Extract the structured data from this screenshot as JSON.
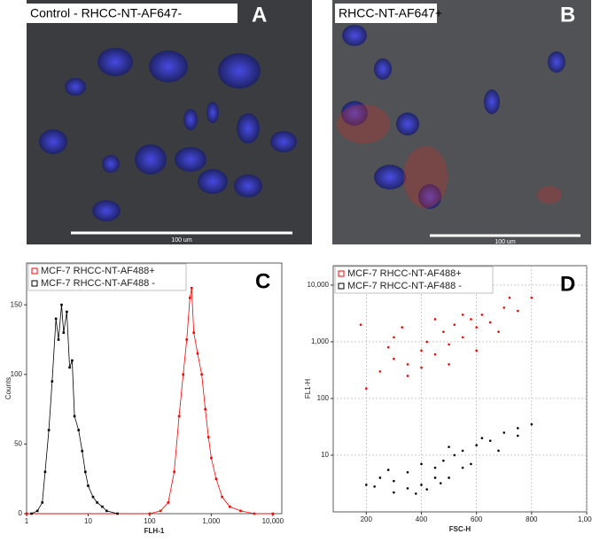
{
  "images": [
    {
      "letter": "A",
      "label": "Control - RHCC-NT-AF647-",
      "scale": "100 um"
    },
    {
      "letter": "B",
      "label": "RHCC-NT-AF647+",
      "scale": "100 um"
    }
  ],
  "chart_data": [
    {
      "type": "line",
      "panel": "C",
      "xlabel": "FLH-1",
      "ylabel": "Counts",
      "xlog": true,
      "xlim": [
        1,
        14000
      ],
      "ylim": [
        0,
        180
      ],
      "xticks": [
        1,
        10,
        100,
        {
          "value": 1000,
          "label": "1,000"
        },
        {
          "value": 10000,
          "label": "10,000"
        }
      ],
      "yticks": [
        0,
        50,
        100,
        150
      ],
      "series": [
        {
          "name": "MCF-7 RHCC-NT-AF488+",
          "color": "#ff0000",
          "x": [
            1,
            100,
            150,
            200,
            250,
            300,
            350,
            400,
            450,
            480,
            520,
            600,
            700,
            800,
            900,
            1000,
            1200,
            1500,
            2000,
            3000,
            5000,
            10000
          ],
          "values": [
            0,
            0,
            2,
            8,
            30,
            70,
            100,
            125,
            155,
            162,
            130,
            115,
            100,
            75,
            55,
            40,
            25,
            12,
            5,
            2,
            0,
            0
          ]
        },
        {
          "name": "MCF-7 RHCC-NT-AF488 -",
          "color": "#000000",
          "x": [
            1.2,
            1.5,
            1.8,
            2,
            2.3,
            2.6,
            3,
            3.3,
            3.7,
            4,
            4.5,
            5,
            5.5,
            6,
            7,
            8,
            9,
            10,
            12,
            14,
            17,
            20,
            30
          ],
          "values": [
            0,
            2,
            8,
            30,
            60,
            95,
            140,
            125,
            150,
            130,
            145,
            105,
            110,
            70,
            60,
            45,
            30,
            20,
            12,
            8,
            5,
            2,
            0
          ]
        }
      ]
    },
    {
      "type": "scatter",
      "panel": "D",
      "xlabel": "FSC-H",
      "ylabel": "FL1-H",
      "ylog": true,
      "grid": true,
      "xlim": [
        80,
        1000
      ],
      "ylim": [
        1,
        22000
      ],
      "xticks": [
        200,
        400,
        600,
        800,
        {
          "value": 1000,
          "label": "1,000"
        }
      ],
      "yticks": [
        10,
        100,
        {
          "value": 1000,
          "label": "1,000"
        },
        {
          "value": 10000,
          "label": "10,000"
        }
      ],
      "series": [
        {
          "name": "MCF-7 RHCC-NT-AF488+",
          "color": "#ff0000",
          "x": [
            250,
            300,
            350,
            400,
            420,
            450,
            480,
            500,
            520,
            550,
            580,
            600,
            620,
            650,
            700,
            750,
            800,
            300,
            350,
            400,
            450,
            500,
            550,
            280,
            330,
            600,
            680,
            200,
            180,
            720
          ],
          "values": [
            300,
            500,
            400,
            700,
            1000,
            600,
            1500,
            900,
            2000,
            1200,
            2500,
            1800,
            3000,
            2200,
            4000,
            3500,
            6000,
            1200,
            250,
            350,
            2500,
            400,
            3000,
            800,
            1800,
            700,
            1500,
            150,
            2000,
            6000
          ]
        },
        {
          "name": "MCF-7 RHCC-NT-AF488 -",
          "color": "#000000",
          "x": [
            200,
            250,
            300,
            350,
            400,
            420,
            450,
            480,
            500,
            520,
            550,
            580,
            600,
            650,
            700,
            750,
            800,
            300,
            350,
            400,
            450,
            500,
            550,
            380,
            470,
            620,
            230,
            280,
            680,
            750
          ],
          "values": [
            3,
            4,
            3.5,
            5,
            3,
            2.5,
            6,
            8,
            4,
            10,
            12,
            7,
            15,
            18,
            25,
            30,
            35,
            2.2,
            2.6,
            7,
            4,
            14,
            6,
            2.1,
            3.2,
            20,
            2.8,
            5.5,
            12,
            22
          ]
        }
      ]
    }
  ]
}
